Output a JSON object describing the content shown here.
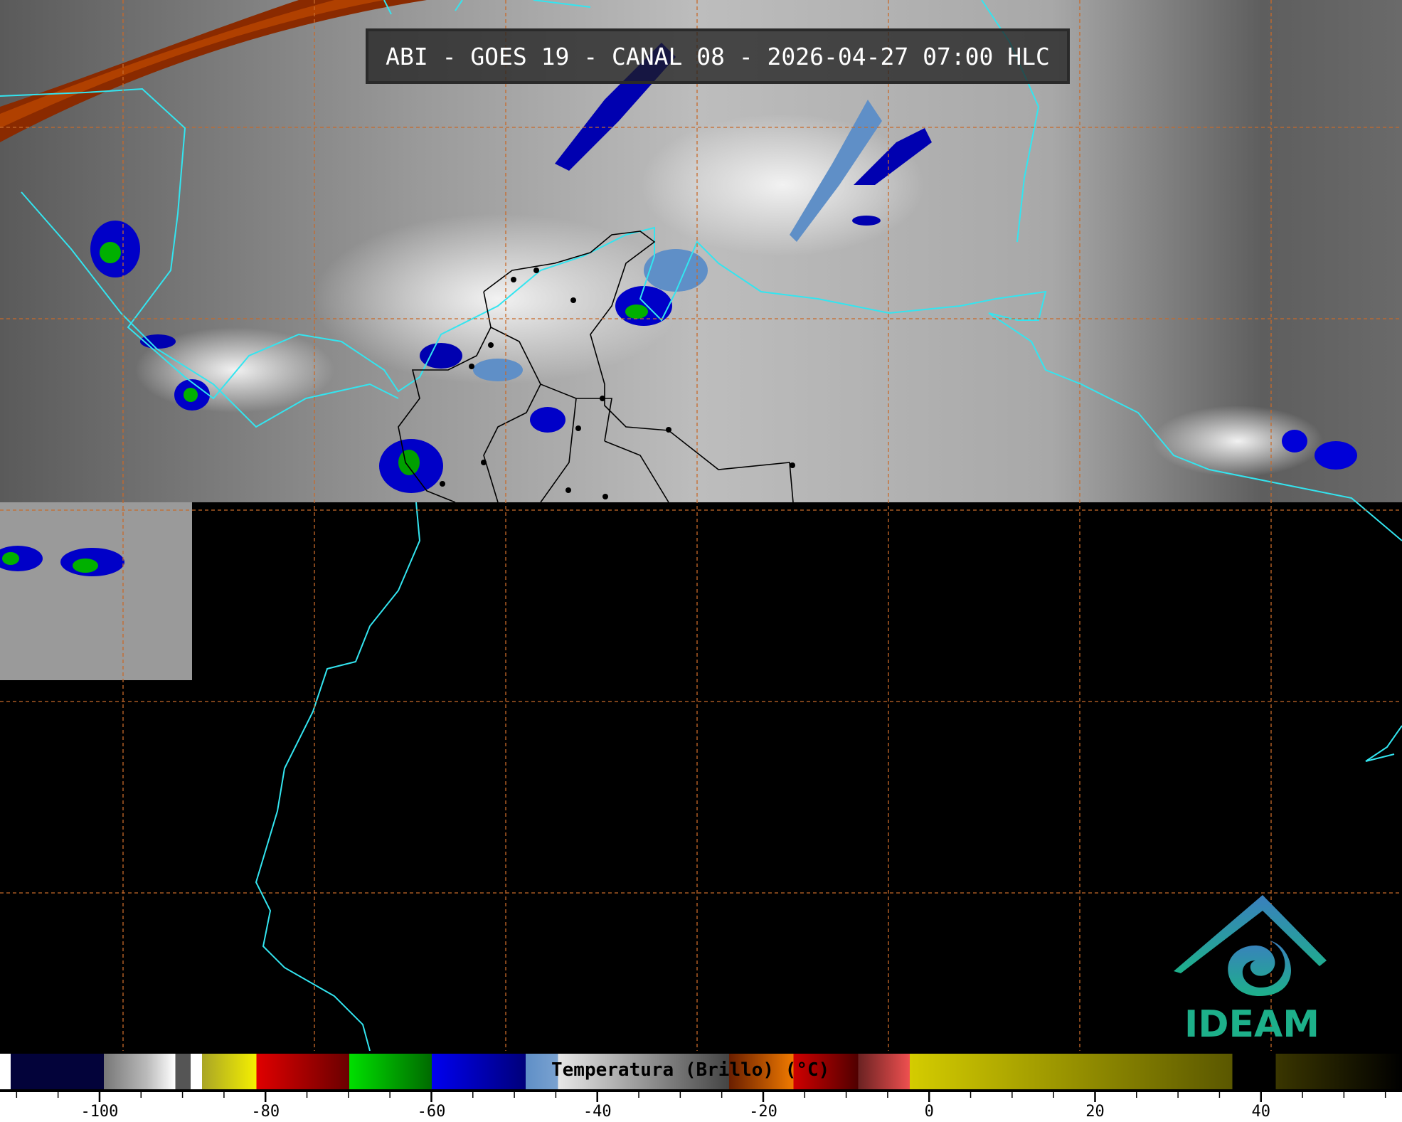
{
  "title": "ABI - GOES 19 - CANAL 08 - 2026-04-27 07:00 HLC",
  "colorbar": {
    "label": "Temperatura (Brillo) (°C)",
    "ticks": [
      "-100",
      "-80",
      "-60",
      "-40",
      "-20",
      "0",
      "20",
      "40"
    ],
    "tick_values": [
      -100,
      -80,
      -60,
      -40,
      -20,
      0,
      20,
      40
    ],
    "range": [
      -112,
      57
    ]
  },
  "logo": {
    "text": "IDEAM",
    "colors": [
      "#3a7fbf",
      "#1db08a"
    ]
  },
  "colors": {
    "grid": "#c86a2a",
    "coastline": "#33e5f0",
    "borders": "#000000",
    "background": "#000000"
  }
}
